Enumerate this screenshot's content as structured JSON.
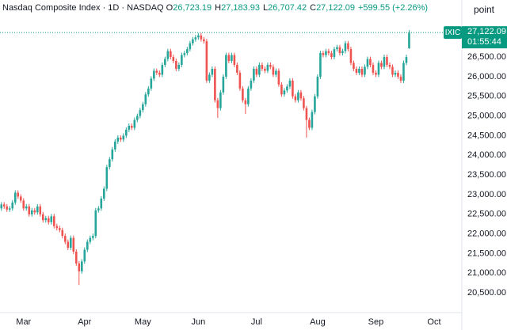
{
  "chart_data": {
    "type": "candlestick",
    "header": {
      "symbol": "Nasdaq Composite Index · 1D · NASDAQ",
      "o_label": "O",
      "o": "26,723.19",
      "h_label": "H",
      "h": "27,183.93",
      "l_label": "L",
      "l": "26,707.42",
      "c_label": "C",
      "c": "27,122.09",
      "change": "+599.55 (+2.26%)"
    },
    "unit_button": "point",
    "price_tag": {
      "ticker": "IXIC",
      "price": "27,122.09",
      "countdown": "01:55:44"
    },
    "up_color": "#26a69a",
    "down_color": "#ef5350",
    "open": [
      22650,
      22750,
      22700,
      22620,
      22650,
      22800,
      23050,
      22950,
      22850,
      22650,
      22700,
      22500,
      22600,
      22550,
      22700,
      22500,
      22350,
      22400,
      22300,
      22450,
      22200,
      22150,
      22100,
      21950,
      21800,
      21650,
      21900,
      21550,
      21250,
      21050,
      21300,
      21600,
      21800,
      21900,
      21950,
      22600,
      22650,
      22900,
      23150,
      23700,
      23900,
      24150,
      24350,
      24450,
      24400,
      24500,
      24650,
      24750,
      24700,
      24900,
      25000,
      25150,
      25300,
      25550,
      25700,
      25950,
      26150,
      26100,
      26050,
      26300,
      26450,
      26650,
      26500,
      26400,
      26200,
      26300,
      26550,
      26600,
      26700,
      26850,
      26950,
      27000,
      27050,
      26950,
      26900,
      25900,
      26050,
      26200,
      25400,
      25200,
      25600,
      26000,
      26550,
      26400,
      26550,
      26300,
      26100,
      25700,
      25400,
      25300,
      25700,
      25900,
      26200,
      26050,
      26300,
      26200,
      26150,
      26300,
      26250,
      26050,
      26150,
      25800,
      25550,
      25650,
      25750,
      25900,
      25500,
      25400,
      25600,
      25450,
      25200,
      24900,
      24700,
      25100,
      25500,
      26000,
      26600,
      26550,
      26650,
      26600,
      26500,
      26700,
      26750,
      26600,
      26650,
      26850,
      26700,
      26350,
      26200,
      26100,
      26200,
      26050,
      26250,
      26450,
      26300,
      26100,
      26050,
      26350,
      26250,
      26500,
      26300,
      26250,
      26050,
      26100,
      26000,
      25900,
      26350,
      26723.19
    ],
    "high": [
      22810,
      22810,
      22760,
      22710,
      22860,
      23110,
      23110,
      23010,
      22910,
      22760,
      22760,
      22660,
      22660,
      22760,
      22760,
      22560,
      22460,
      22460,
      22510,
      22510,
      22260,
      22210,
      22160,
      22010,
      21860,
      21960,
      21960,
      21610,
      21310,
      21360,
      21660,
      21860,
      21960,
      22010,
      22660,
      22710,
      22960,
      23210,
      23760,
      23960,
      24210,
      24410,
      24510,
      24510,
      24560,
      24710,
      24810,
      24810,
      24960,
      25060,
      25210,
      25360,
      25610,
      25760,
      26010,
      26210,
      26210,
      26160,
      26360,
      26510,
      26710,
      26710,
      26560,
      26460,
      26360,
      26610,
      26660,
      26760,
      26910,
      27010,
      27060,
      27110,
      27110,
      27010,
      26960,
      26110,
      26260,
      26260,
      25460,
      25660,
      26060,
      26610,
      26610,
      26610,
      26610,
      26360,
      26160,
      25760,
      25460,
      25760,
      25960,
      26260,
      26260,
      26360,
      26360,
      26260,
      26360,
      26360,
      26310,
      26210,
      26210,
      25860,
      25710,
      25810,
      25960,
      25960,
      25560,
      25660,
      25660,
      25510,
      25260,
      24960,
      25160,
      25560,
      26060,
      26660,
      26660,
      26710,
      26710,
      26660,
      26760,
      26810,
      26810,
      26710,
      26910,
      26910,
      26760,
      26410,
      26260,
      26260,
      26260,
      26310,
      26510,
      26510,
      26360,
      26160,
      26410,
      26410,
      26560,
      26560,
      26360,
      26310,
      26160,
      26160,
      26060,
      26410,
      26560,
      27183.93
    ],
    "low": [
      22590,
      22640,
      22560,
      22560,
      22590,
      22740,
      22890,
      22790,
      22590,
      22590,
      22440,
      22440,
      22490,
      22490,
      22440,
      22290,
      22290,
      22240,
      22240,
      22140,
      22090,
      22040,
      21890,
      21740,
      21590,
      21590,
      21490,
      21190,
      20700,
      20990,
      21240,
      21540,
      21740,
      21840,
      21890,
      22540,
      22590,
      22840,
      23090,
      23640,
      23840,
      24090,
      24290,
      24340,
      24340,
      24440,
      24590,
      24640,
      24640,
      24840,
      24940,
      25090,
      25240,
      25490,
      25640,
      25890,
      26040,
      25990,
      25990,
      26240,
      26390,
      26440,
      26340,
      26140,
      26140,
      26240,
      26490,
      26540,
      26640,
      26790,
      26890,
      26940,
      26890,
      26840,
      25840,
      25840,
      25990,
      25340,
      24950,
      25140,
      25540,
      25940,
      26340,
      26340,
      26240,
      26040,
      25640,
      25340,
      25050,
      25240,
      25640,
      25840,
      25990,
      25990,
      26140,
      26090,
      26090,
      26190,
      25990,
      25990,
      25740,
      25490,
      25490,
      25590,
      25690,
      25440,
      25340,
      25340,
      25390,
      25140,
      24450,
      24640,
      24640,
      25040,
      25440,
      25940,
      26490,
      26490,
      26540,
      26440,
      26440,
      26640,
      26540,
      26540,
      26590,
      26640,
      26290,
      26140,
      26040,
      26040,
      25990,
      25990,
      26190,
      26240,
      26040,
      25990,
      25990,
      26190,
      26190,
      26240,
      26190,
      25990,
      25990,
      25940,
      25840,
      25840,
      26290,
      26707.42
    ],
    "close": [
      22750,
      22700,
      22620,
      22650,
      22800,
      23050,
      22950,
      22850,
      22650,
      22700,
      22500,
      22600,
      22550,
      22700,
      22500,
      22350,
      22400,
      22300,
      22450,
      22200,
      22150,
      22100,
      21950,
      21800,
      21650,
      21900,
      21550,
      21250,
      21050,
      21300,
      21600,
      21800,
      21900,
      21950,
      22600,
      22650,
      22900,
      23150,
      23700,
      23900,
      24150,
      24350,
      24450,
      24400,
      24500,
      24650,
      24750,
      24700,
      24900,
      25000,
      25150,
      25300,
      25550,
      25700,
      25950,
      26150,
      26100,
      26050,
      26300,
      26450,
      26650,
      26500,
      26400,
      26200,
      26300,
      26550,
      26600,
      26700,
      26850,
      26950,
      27000,
      27050,
      26950,
      26900,
      25900,
      26050,
      26200,
      25400,
      25200,
      25600,
      26000,
      26550,
      26400,
      26550,
      26300,
      26100,
      25700,
      25400,
      25300,
      25700,
      25900,
      26200,
      26050,
      26300,
      26200,
      26150,
      26300,
      26250,
      26050,
      26150,
      25800,
      25550,
      25650,
      25750,
      25900,
      25500,
      25400,
      25600,
      25450,
      25200,
      24900,
      24700,
      25100,
      25500,
      26000,
      26600,
      26550,
      26650,
      26600,
      26500,
      26700,
      26750,
      26600,
      26650,
      26850,
      26700,
      26350,
      26200,
      26100,
      26200,
      26050,
      26250,
      26450,
      26300,
      26100,
      26050,
      26350,
      26250,
      26500,
      26300,
      26250,
      26050,
      26100,
      26000,
      25900,
      26350,
      26500,
      27122.09
    ],
    "xlim": [
      -0.5,
      166
    ],
    "xticks": [
      {
        "value": 8,
        "label": "Mar"
      },
      {
        "value": 30,
        "label": "Apr"
      },
      {
        "value": 51,
        "label": "May"
      },
      {
        "value": 71,
        "label": "Jun"
      },
      {
        "value": 92,
        "label": "Jul"
      },
      {
        "value": 114,
        "label": "Aug"
      },
      {
        "value": 135,
        "label": "Sep"
      },
      {
        "value": 156,
        "label": "Oct"
      }
    ],
    "ylim": [
      20000,
      27950
    ],
    "yticks": [
      {
        "value": 20500,
        "label": "20,500.00"
      },
      {
        "value": 21000,
        "label": "21,000.00"
      },
      {
        "value": 21500,
        "label": "21,500.00"
      },
      {
        "value": 22000,
        "label": "22,000.00"
      },
      {
        "value": 22500,
        "label": "22,500.00"
      },
      {
        "value": 23000,
        "label": "23,000.00"
      },
      {
        "value": 23500,
        "label": "23,500.00"
      },
      {
        "value": 24000,
        "label": "24,000.00"
      },
      {
        "value": 24500,
        "label": "24,500.00"
      },
      {
        "value": 25000,
        "label": "25,000.00"
      },
      {
        "value": 25500,
        "label": "25,500.00"
      },
      {
        "value": 26000,
        "label": "26,000.00"
      },
      {
        "value": 26500,
        "label": "26,500.00"
      }
    ],
    "grid": false
  }
}
